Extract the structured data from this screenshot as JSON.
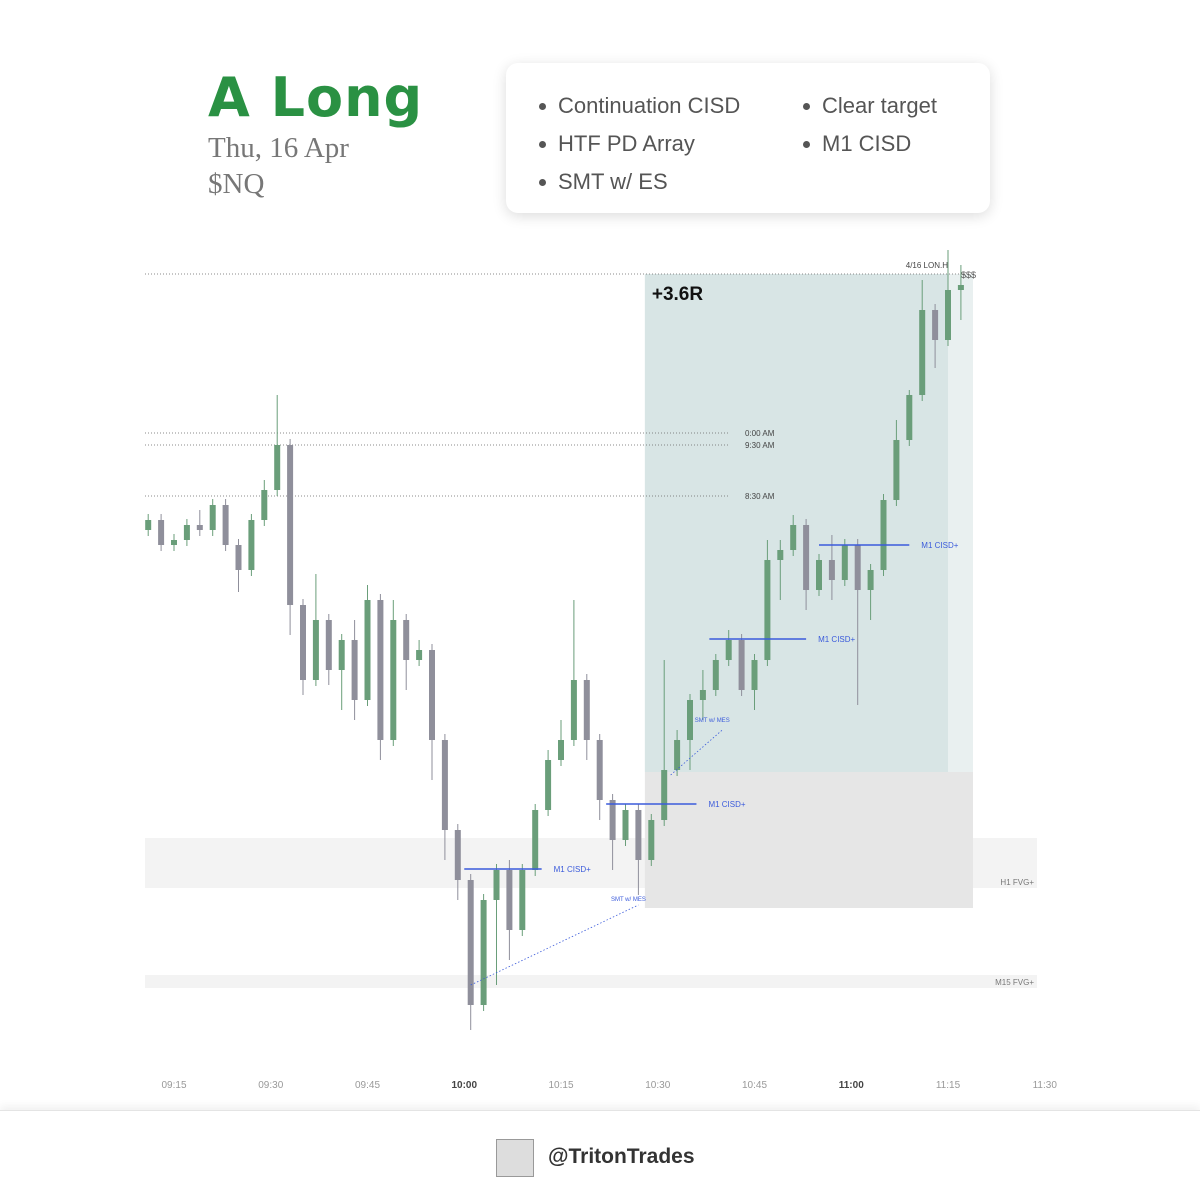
{
  "header": {
    "title": "A Long",
    "date": "Thu, 16 Apr",
    "symbol": "$NQ"
  },
  "checklist": [
    "Continuation CISD",
    "HTF PD Array",
    "SMT w/ ES",
    "Clear target",
    "M1 CISD"
  ],
  "chart_data": {
    "type": "candlestick",
    "x": [
      "09:11",
      "09:13",
      "09:15",
      "09:17",
      "09:19",
      "09:21",
      "09:23",
      "09:25",
      "09:27",
      "09:29",
      "09:31",
      "09:33",
      "09:35",
      "09:37",
      "09:39",
      "09:41",
      "09:43",
      "09:45",
      "09:47",
      "09:49",
      "09:51",
      "09:53",
      "09:55",
      "09:57",
      "09:59",
      "10:01",
      "10:03",
      "10:05",
      "10:07",
      "10:09",
      "10:11",
      "10:13",
      "10:15",
      "10:17",
      "10:19",
      "10:21",
      "10:23",
      "10:25",
      "10:27",
      "10:29",
      "10:31",
      "10:33",
      "10:35",
      "10:37",
      "10:39",
      "10:41",
      "10:43",
      "10:45",
      "10:47",
      "10:49",
      "10:51",
      "10:53",
      "10:55",
      "10:57",
      "10:59",
      "11:01",
      "11:03",
      "11:05",
      "11:07",
      "11:09",
      "11:11",
      "11:13",
      "11:15",
      "11:17"
    ],
    "open": [
      510,
      520,
      495,
      500,
      515,
      510,
      535,
      495,
      470,
      520,
      550,
      595,
      435,
      360,
      420,
      370,
      400,
      340,
      440,
      300,
      420,
      380,
      390,
      300,
      210,
      160,
      35,
      140,
      170,
      110,
      170,
      230,
      280,
      300,
      360,
      300,
      240,
      200,
      230,
      180,
      220,
      270,
      300,
      340,
      350,
      380,
      400,
      350,
      380,
      480,
      490,
      515,
      450,
      480,
      460,
      495,
      450,
      470,
      540,
      600,
      645,
      730,
      700,
      750
    ],
    "high": [
      526,
      526,
      506,
      521,
      530,
      541,
      541,
      501,
      526,
      560,
      645,
      601,
      441,
      466,
      426,
      406,
      420,
      455,
      446,
      440,
      426,
      400,
      396,
      306,
      216,
      166,
      146,
      176,
      180,
      176,
      236,
      290,
      320,
      440,
      366,
      306,
      246,
      236,
      236,
      226,
      380,
      310,
      346,
      370,
      386,
      410,
      406,
      386,
      500,
      500,
      525,
      521,
      486,
      505,
      501,
      501,
      476,
      546,
      620,
      650,
      760,
      736,
      790,
      775
    ],
    "low": [
      504,
      489,
      489,
      494,
      504,
      504,
      489,
      448,
      464,
      514,
      544,
      405,
      345,
      354,
      355,
      330,
      320,
      334,
      280,
      294,
      350,
      374,
      260,
      180,
      140,
      10,
      29,
      55,
      80,
      104,
      164,
      224,
      274,
      294,
      280,
      220,
      170,
      194,
      145,
      174,
      214,
      264,
      270,
      320,
      344,
      374,
      344,
      330,
      374,
      440,
      484,
      430,
      444,
      440,
      454,
      335,
      420,
      464,
      534,
      594,
      639,
      672,
      694,
      720
    ],
    "close": [
      520,
      495,
      500,
      515,
      510,
      535,
      495,
      470,
      520,
      550,
      595,
      435,
      360,
      420,
      370,
      400,
      340,
      440,
      300,
      420,
      380,
      390,
      300,
      210,
      160,
      35,
      140,
      170,
      110,
      170,
      230,
      280,
      300,
      360,
      300,
      240,
      200,
      230,
      180,
      220,
      270,
      300,
      340,
      350,
      380,
      400,
      350,
      380,
      480,
      490,
      515,
      450,
      480,
      460,
      495,
      450,
      470,
      540,
      600,
      645,
      730,
      700,
      750,
      755
    ],
    "colors": {
      "up": "#6a9e7a",
      "down": "#8f8f9b"
    },
    "ylim": [
      0,
      800
    ],
    "xticks": [
      "09:15",
      "09:30",
      "09:45",
      "10:00",
      "10:15",
      "10:30",
      "10:45",
      "11:00",
      "11:15",
      "11:30"
    ],
    "levels": [
      {
        "label": "4/16 LON.H",
        "value": 766
      },
      {
        "label": "0:00 AM",
        "value": 607
      },
      {
        "label": "9:30 AM",
        "value": 595
      },
      {
        "label": "8:30 AM",
        "value": 544
      }
    ],
    "zones": [
      {
        "label": "H1 FVG+",
        "range": [
          152,
          202
        ]
      },
      {
        "label": "M15 FVG+",
        "range": [
          52,
          65
        ]
      }
    ],
    "cisd": [
      {
        "label": "M1 CISD+",
        "value": 171,
        "start": "10:00",
        "end": "10:12"
      },
      {
        "label": "M1 CISD+",
        "value": 236,
        "start": "10:22",
        "end": "10:36"
      },
      {
        "label": "M1 CISD+",
        "value": 401,
        "start": "10:38",
        "end": "10:53"
      },
      {
        "label": "M1 CISD+",
        "value": 495,
        "start": "10:55",
        "end": "11:09"
      }
    ],
    "smt": [
      {
        "label": "SMT w/ MES",
        "start": "10:01",
        "from": 55,
        "end": "10:27",
        "to": 135
      },
      {
        "label": "SMT w/ MES",
        "start": "10:32",
        "from": 265,
        "end": "10:40",
        "to": 310
      }
    ],
    "trade": {
      "label": "+3.6R",
      "start": "10:28",
      "end": "11:15",
      "entry": 268,
      "target": 766,
      "stop": 132
    },
    "target_label": "$$$"
  },
  "footer": {
    "handle": "@TritonTrades"
  }
}
